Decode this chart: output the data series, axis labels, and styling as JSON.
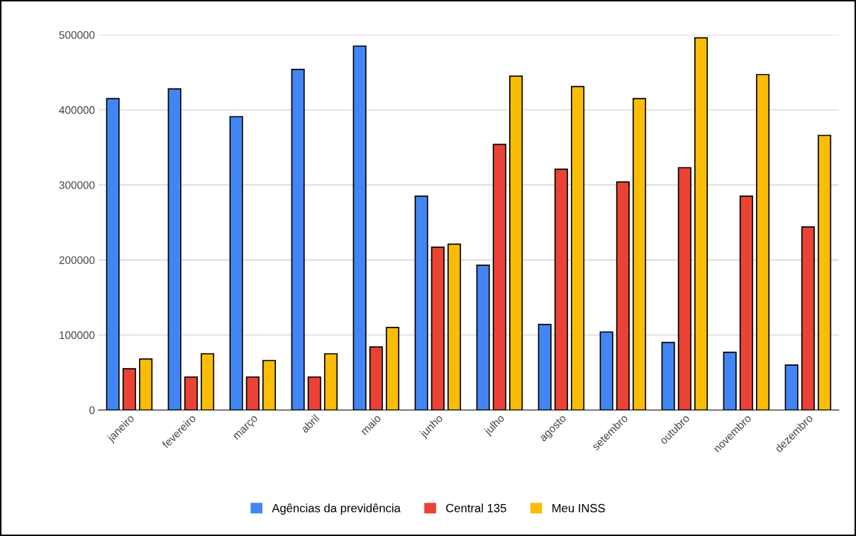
{
  "chart_data": {
    "type": "bar",
    "categories": [
      "janeiro",
      "fevereiro",
      "março",
      "abril",
      "maio",
      "junho",
      "julho",
      "agosto",
      "setembro",
      "outubro",
      "novembro",
      "dezembro"
    ],
    "series": [
      {
        "name": "Agências da previdência",
        "color": "#4285f4",
        "values": [
          415000,
          428000,
          391000,
          454000,
          485000,
          285000,
          193000,
          114000,
          104000,
          90000,
          77000,
          60000
        ]
      },
      {
        "name": "Central 135",
        "color": "#ea4335",
        "values": [
          55000,
          44000,
          44000,
          44000,
          84000,
          217000,
          354000,
          321000,
          304000,
          323000,
          285000,
          244000
        ]
      },
      {
        "name": "Meu INSS",
        "color": "#fbbc04",
        "values": [
          68000,
          75000,
          66000,
          75000,
          110000,
          221000,
          445000,
          431000,
          415000,
          496000,
          447000,
          366000
        ]
      }
    ],
    "ylim": [
      0,
      500000
    ],
    "yticks": [
      0,
      100000,
      200000,
      300000,
      400000,
      500000
    ],
    "grid": "y",
    "legend": "bottom"
  }
}
